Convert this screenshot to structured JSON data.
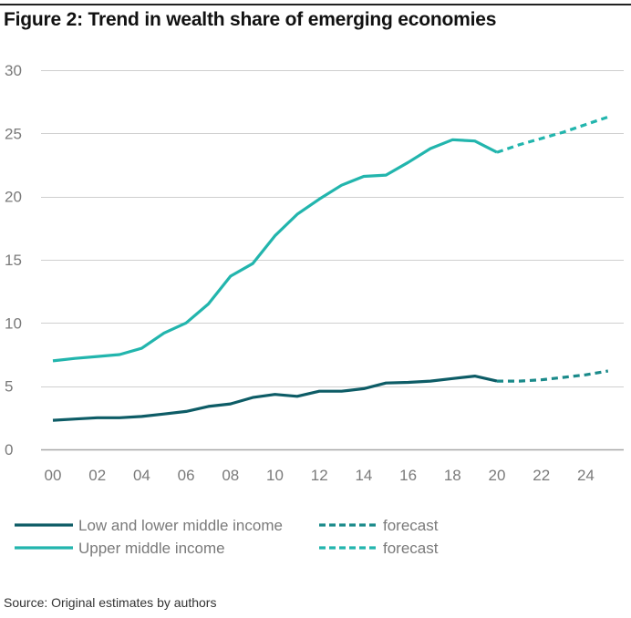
{
  "chart_data": {
    "type": "line",
    "title": "Figure 2: Trend in wealth share of emerging economies",
    "xlabel": "",
    "ylabel": "",
    "ylim": [
      0,
      30
    ],
    "yticks": [
      0,
      5,
      10,
      15,
      20,
      25,
      30
    ],
    "xlim": [
      2000,
      2025
    ],
    "x_tick_values": [
      2000,
      2002,
      2004,
      2006,
      2008,
      2010,
      2012,
      2014,
      2016,
      2018,
      2020,
      2022,
      2024
    ],
    "x_tick_labels": [
      "00",
      "02",
      "04",
      "06",
      "08",
      "10",
      "12",
      "14",
      "16",
      "18",
      "20",
      "22",
      "24"
    ],
    "grid": true,
    "legend_position": "bottom",
    "series": [
      {
        "name": "Low and lower middle income",
        "color": "#0d5c66",
        "style": "solid",
        "x": [
          2000,
          2001,
          2002,
          2003,
          2004,
          2005,
          2006,
          2007,
          2008,
          2009,
          2010,
          2011,
          2012,
          2013,
          2014,
          2015,
          2016,
          2017,
          2018,
          2019,
          2020
        ],
        "values": [
          2.3,
          2.4,
          2.5,
          2.5,
          2.6,
          2.8,
          3.0,
          3.4,
          3.6,
          4.1,
          4.35,
          4.2,
          4.6,
          4.6,
          4.8,
          5.25,
          5.3,
          5.4,
          5.6,
          5.8,
          5.4
        ]
      },
      {
        "name": "forecast",
        "color": "#1a8a8a",
        "style": "dashed",
        "x": [
          2020,
          2021,
          2022,
          2023,
          2024,
          2025
        ],
        "values": [
          5.4,
          5.4,
          5.5,
          5.7,
          5.9,
          6.2
        ]
      },
      {
        "name": "Upper middle income",
        "color": "#22b5ad",
        "style": "solid",
        "x": [
          2000,
          2001,
          2002,
          2003,
          2004,
          2005,
          2006,
          2007,
          2008,
          2009,
          2010,
          2011,
          2012,
          2013,
          2014,
          2015,
          2016,
          2017,
          2018,
          2019,
          2020
        ],
        "values": [
          7.0,
          7.2,
          7.35,
          7.5,
          8.0,
          9.2,
          10.0,
          11.5,
          13.7,
          14.7,
          16.9,
          18.6,
          19.8,
          20.9,
          21.6,
          21.7,
          22.7,
          23.8,
          24.5,
          24.4,
          23.5
        ]
      },
      {
        "name": "forecast",
        "color": "#22b5ad",
        "style": "dashed",
        "x": [
          2020,
          2021,
          2022,
          2023,
          2024,
          2025
        ],
        "values": [
          23.5,
          24.1,
          24.6,
          25.1,
          25.7,
          26.3
        ]
      }
    ],
    "legend": [
      {
        "label": "Low and lower middle income",
        "color": "#0d5c66",
        "style": "solid"
      },
      {
        "label": "forecast",
        "color": "#1a8a8a",
        "style": "dashed"
      },
      {
        "label": "Upper middle income",
        "color": "#22b5ad",
        "style": "solid"
      },
      {
        "label": "forecast",
        "color": "#22b5ad",
        "style": "dashed"
      }
    ],
    "source": "Source: Original estimates by authors"
  }
}
